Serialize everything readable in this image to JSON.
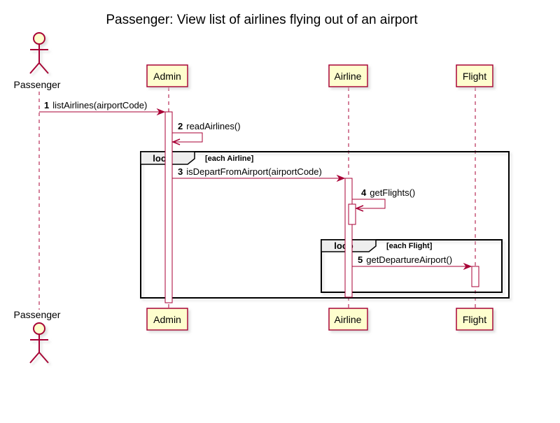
{
  "title": "Passenger: View list of airlines flying out of an airport",
  "participants": [
    {
      "id": "passenger",
      "label": "Passenger",
      "kind": "actor"
    },
    {
      "id": "admin",
      "label": "Admin",
      "kind": "participant"
    },
    {
      "id": "airline",
      "label": "Airline",
      "kind": "participant"
    },
    {
      "id": "flight",
      "label": "Flight",
      "kind": "participant"
    }
  ],
  "messages": [
    {
      "num": "1",
      "text": "listAirlines(airportCode)",
      "from": "passenger",
      "to": "admin"
    },
    {
      "num": "2",
      "text": "readAirlines()",
      "from": "admin",
      "to": "admin"
    },
    {
      "num": "3",
      "text": "isDepartFromAirport(airportCode)",
      "from": "admin",
      "to": "airline"
    },
    {
      "num": "4",
      "text": "getFlights()",
      "from": "airline",
      "to": "airline"
    },
    {
      "num": "5",
      "text": "getDepartureAirport()",
      "from": "airline",
      "to": "flight"
    }
  ],
  "fragments": [
    {
      "kind": "loop",
      "guard": "[each Airline]"
    },
    {
      "kind": "loop",
      "guard": "[each Flight]"
    }
  ],
  "colors": {
    "line": "#A80036",
    "box_fill": "#FEFECE",
    "activation_fill": "#FFFFFF",
    "frame_tab": "#EEEEEE",
    "text": "#000000",
    "shadow": "#c8c8c8"
  }
}
